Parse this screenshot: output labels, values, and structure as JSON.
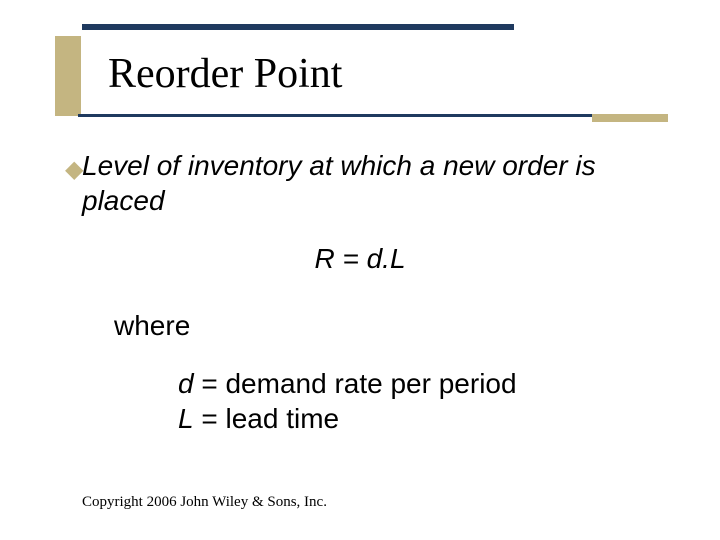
{
  "colors": {
    "rule_dark": "#1f3a5f",
    "accent_tan": "#c4b581",
    "text": "#000000",
    "background": "#ffffff"
  },
  "title": "Reorder Point",
  "bullet_glyph": "◆",
  "definition": "Level of inventory at which a new order is placed",
  "formula": "R = d.L",
  "where_label": "where",
  "var_defs": {
    "d_var": "d",
    "d_text": " = demand rate per period",
    "l_var": "L",
    "l_text": " = lead time"
  },
  "copyright": "Copyright 2006 John Wiley & Sons, Inc.",
  "fonts": {
    "title_family": "Times New Roman",
    "body_family": "Arial",
    "title_size_pt": 42,
    "body_size_pt": 28,
    "copyright_size_pt": 15
  }
}
